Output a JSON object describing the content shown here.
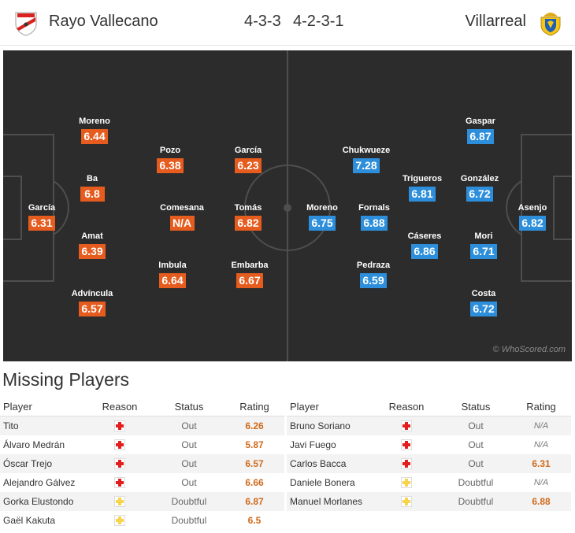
{
  "header": {
    "home_team": "Rayo Vallecano",
    "away_team": "Villarreal",
    "home_formation": "4-3-3",
    "away_formation": "4-2-3-1",
    "home_badge_icon": "rayo-vallecano-badge-icon",
    "away_badge_icon": "villarreal-badge-icon"
  },
  "colors": {
    "home_rating_bg": "#e55c1e",
    "away_rating_bg": "#2d8fdb",
    "pitch_bg": "#2c2c2c",
    "injury_icon": "#e31d1d",
    "doubtful_icon": "#f7d44a",
    "missing_rating": "#d06a1c"
  },
  "pitch": {
    "watermark": "© WhoScored.com",
    "home_players": [
      {
        "name": "García",
        "rating": "6.31"
      },
      {
        "name": "Moreno",
        "rating": "6.44"
      },
      {
        "name": "Ba",
        "rating": "6.8"
      },
      {
        "name": "Amat",
        "rating": "6.39"
      },
      {
        "name": "Advíncula",
        "rating": "6.57"
      },
      {
        "name": "Pozo",
        "rating": "6.38"
      },
      {
        "name": "Comesana",
        "rating": "N/A"
      },
      {
        "name": "Imbula",
        "rating": "6.64"
      },
      {
        "name": "García",
        "rating": "6.23"
      },
      {
        "name": "Tomás",
        "rating": "6.82"
      },
      {
        "name": "Embarba",
        "rating": "6.67"
      }
    ],
    "away_players": [
      {
        "name": "Asenjo",
        "rating": "6.82"
      },
      {
        "name": "Gaspar",
        "rating": "6.87"
      },
      {
        "name": "González",
        "rating": "6.72"
      },
      {
        "name": "Mori",
        "rating": "6.71"
      },
      {
        "name": "Costa",
        "rating": "6.72"
      },
      {
        "name": "Trigueros",
        "rating": "6.81"
      },
      {
        "name": "Cáseres",
        "rating": "6.86"
      },
      {
        "name": "Chukwueze",
        "rating": "7.28"
      },
      {
        "name": "Fornals",
        "rating": "6.88"
      },
      {
        "name": "Pedraza",
        "rating": "6.59"
      },
      {
        "name": "Moreno",
        "rating": "6.75"
      }
    ]
  },
  "missing": {
    "title": "Missing Players",
    "columns": {
      "player": "Player",
      "reason": "Reason",
      "status": "Status",
      "rating": "Rating"
    },
    "home": [
      {
        "player": "Tito",
        "reason": "injury-cross-icon",
        "status": "Out",
        "rating": "6.26"
      },
      {
        "player": "Álvaro Medrán",
        "reason": "injury-cross-icon",
        "status": "Out",
        "rating": "5.87"
      },
      {
        "player": "Óscar Trejo",
        "reason": "injury-cross-icon",
        "status": "Out",
        "rating": "6.57"
      },
      {
        "player": "Alejandro Gálvez",
        "reason": "injury-cross-icon",
        "status": "Out",
        "rating": "6.66"
      },
      {
        "player": "Gorka Elustondo",
        "reason": "doubtful-cross-icon",
        "status": "Doubtful",
        "rating": "6.87"
      },
      {
        "player": "Gaël Kakuta",
        "reason": "doubtful-cross-icon",
        "status": "Doubtful",
        "rating": "6.5"
      }
    ],
    "away": [
      {
        "player": "Bruno Soriano",
        "reason": "injury-cross-icon",
        "status": "Out",
        "rating": "N/A"
      },
      {
        "player": "Javi Fuego",
        "reason": "injury-cross-icon",
        "status": "Out",
        "rating": "N/A"
      },
      {
        "player": "Carlos Bacca",
        "reason": "injury-cross-icon",
        "status": "Out",
        "rating": "6.31"
      },
      {
        "player": "Daniele Bonera",
        "reason": "doubtful-cross-icon",
        "status": "Doubtful",
        "rating": "N/A"
      },
      {
        "player": "Manuel Morlanes",
        "reason": "doubtful-cross-icon",
        "status": "Doubtful",
        "rating": "6.88"
      }
    ]
  }
}
